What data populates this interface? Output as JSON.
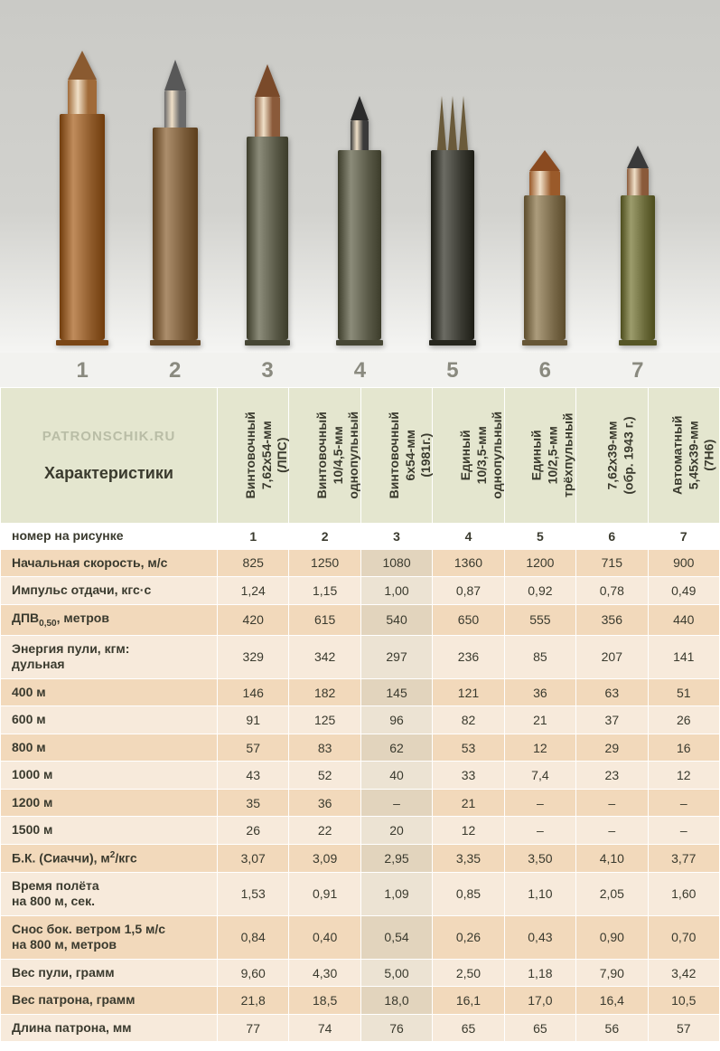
{
  "watermark": "PATRONSCHIK.RU",
  "header_title": "Характеристики",
  "index_label": "номер на рисунке",
  "image_numbers": [
    "1",
    "2",
    "3",
    "4",
    "5",
    "6",
    "7"
  ],
  "columns": [
    {
      "line1": "Винтовочный",
      "line2": "7,62х54-мм",
      "line3": "(ЛПС)"
    },
    {
      "line1": "Винтовочный",
      "line2": "10/4,5-мм",
      "line3": "однопульный"
    },
    {
      "line1": "Винтовочный",
      "line2": "6х54-мм",
      "line3": "(1981г.)"
    },
    {
      "line1": "Единый",
      "line2": "10/3,5-мм",
      "line3": "однопульный"
    },
    {
      "line1": "Единый",
      "line2": "10/2,5-мм",
      "line3": "трёхпульный"
    },
    {
      "line1": "7,62х39-мм",
      "line2": "(обр. 1943 г.)",
      "line3": ""
    },
    {
      "line1": "Автоматный",
      "line2": "5,45х39-мм",
      "line3": "(7Н6)"
    }
  ],
  "cartridges": [
    {
      "total_h": 360,
      "case_w": 50,
      "case_h": 250,
      "case_color": "#8e5a2a",
      "bullet_w": 32,
      "bullet_h": 70,
      "bullet_color": "#a06a38",
      "tip_color": "#8a5a30",
      "rim_w": 58
    },
    {
      "total_h": 345,
      "case_w": 50,
      "case_h": 235,
      "case_color": "#7a5c3a",
      "bullet_w": 24,
      "bullet_h": 75,
      "bullet_color": "#6a6a6a",
      "tip_color": "#585858",
      "rim_w": 56
    },
    {
      "total_h": 335,
      "case_w": 46,
      "case_h": 225,
      "case_color": "#5a5a48",
      "bullet_w": 28,
      "bullet_h": 80,
      "bullet_color": "#8a5a3a",
      "tip_color": "#7a4a2a",
      "rim_w": 50
    },
    {
      "total_h": 300,
      "case_w": 48,
      "case_h": 210,
      "case_color": "#5a5a48",
      "bullet_w": 20,
      "bullet_h": 60,
      "bullet_color": "#3a3a3a",
      "tip_color": "#2a2a2a",
      "rim_w": 52
    },
    {
      "total_h": 300,
      "case_w": 48,
      "case_h": 210,
      "case_color": "#3a3a32",
      "bullet_w": 30,
      "bullet_h": 60,
      "bullet_color": "#6a5a3a",
      "tip_color": "#5a4a2a",
      "rim_w": 52,
      "multi": 3
    },
    {
      "total_h": 230,
      "case_w": 46,
      "case_h": 160,
      "case_color": "#7a6a4a",
      "bullet_w": 34,
      "bullet_h": 50,
      "bullet_color": "#9a5a2a",
      "tip_color": "#8a4a20",
      "rim_w": 50
    },
    {
      "total_h": 230,
      "case_w": 38,
      "case_h": 160,
      "case_color": "#6a6a3a",
      "bullet_w": 24,
      "bullet_h": 55,
      "bullet_color": "#8a5a3a",
      "tip_color": "#3a3a3a",
      "rim_w": 42
    }
  ],
  "index_row": [
    "1",
    "2",
    "3",
    "4",
    "5",
    "6",
    "7"
  ],
  "rows": [
    {
      "label": "Начальная скорость, м/с",
      "vals": [
        "825",
        "1250",
        "1080",
        "1360",
        "1200",
        "715",
        "900"
      ]
    },
    {
      "label": "Импульс отдачи, кгс·с",
      "vals": [
        "1,24",
        "1,15",
        "1,00",
        "0,87",
        "0,92",
        "0,78",
        "0,49"
      ]
    },
    {
      "label_html": "ДПВ<span class='sub'>0,50</span>, метров",
      "vals": [
        "420",
        "615",
        "540",
        "650",
        "555",
        "356",
        "440"
      ]
    },
    {
      "label_html": "Энергия пули, кгм:<br>дульная",
      "vals": [
        "329",
        "342",
        "297",
        "236",
        "85",
        "207",
        "141"
      ]
    },
    {
      "label": "400 м",
      "vals": [
        "146",
        "182",
        "145",
        "121",
        "36",
        "63",
        "51"
      ]
    },
    {
      "label": "600 м",
      "vals": [
        "91",
        "125",
        "96",
        "82",
        "21",
        "37",
        "26"
      ]
    },
    {
      "label": "800 м",
      "vals": [
        "57",
        "83",
        "62",
        "53",
        "12",
        "29",
        "16"
      ]
    },
    {
      "label": "1000 м",
      "vals": [
        "43",
        "52",
        "40",
        "33",
        "7,4",
        "23",
        "12"
      ]
    },
    {
      "label": "1200 м",
      "vals": [
        "35",
        "36",
        "–",
        "21",
        "–",
        "–",
        "–"
      ]
    },
    {
      "label": "1500 м",
      "vals": [
        "26",
        "22",
        "20",
        "12",
        "–",
        "–",
        "–"
      ]
    },
    {
      "label_html": "Б.К. (Сиаччи), м<span class='sup'>2</span>/кгс",
      "vals": [
        "3,07",
        "3,09",
        "2,95",
        "3,35",
        "3,50",
        "4,10",
        "3,77"
      ]
    },
    {
      "label_html": "Время полёта<br>на 800 м, сек.",
      "vals": [
        "1,53",
        "0,91",
        "1,09",
        "0,85",
        "1,10",
        "2,05",
        "1,60"
      ]
    },
    {
      "label_html": "Снос бок. ветром 1,5 м/с<br>на 800 м, метров",
      "vals": [
        "0,84",
        "0,40",
        "0,54",
        "0,26",
        "0,43",
        "0,90",
        "0,70"
      ]
    },
    {
      "label": "Вес пули, грамм",
      "vals": [
        "9,60",
        "4,30",
        "5,00",
        "2,50",
        "1,18",
        "7,90",
        "3,42"
      ]
    },
    {
      "label": "Вес патрона, грамм",
      "vals": [
        "21,8",
        "18,5",
        "18,0",
        "16,1",
        "17,0",
        "16,4",
        "10,5"
      ]
    },
    {
      "label": "Длина патрона, мм",
      "vals": [
        "77",
        "74",
        "76",
        "65",
        "65",
        "56",
        "57"
      ]
    }
  ],
  "styling": {
    "row_bg_a": "#f2d9bb",
    "row_bg_b": "#f7eadb",
    "col3_bg_a": "#e2d4bd",
    "col3_bg_b": "#ece3d3",
    "header_bg": "#e4e6cf",
    "border_color": "#ffffff",
    "label_fontsize": 14,
    "data_fontsize": 14
  }
}
